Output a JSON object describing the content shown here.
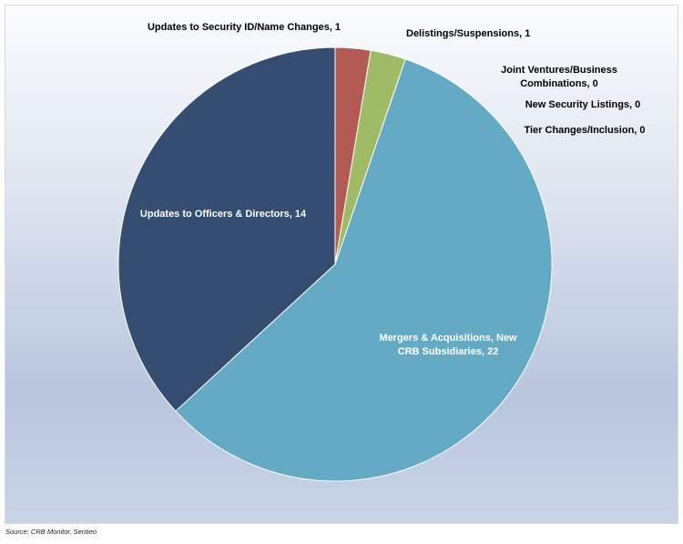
{
  "chart_data": {
    "type": "pie",
    "title": "",
    "slices": [
      {
        "label": "Updates to Security ID/Name Changes",
        "value": 1,
        "color": "#b35a53"
      },
      {
        "label": "Delistings/Suspensions",
        "value": 1,
        "color": "#9fbb66"
      },
      {
        "label": "Joint Ventures/Business Combinations",
        "value": 0,
        "color": "#7d62a0"
      },
      {
        "label": "New Security Listings",
        "value": 0,
        "color": "#4bacc6"
      },
      {
        "label": "Tier Changes/Inclusion",
        "value": 0,
        "color": "#f79646"
      },
      {
        "label": "Mergers & Acquisitions, New CRB Subsidiaries",
        "value": 22,
        "color": "#64aac4"
      },
      {
        "label": "Updates to Officers & Directors",
        "value": 14,
        "color": "#344d70"
      }
    ],
    "data_labels": [
      [
        "Updates to Security ID/Name Changes, 1"
      ],
      [
        "Delistings/Suspensions, 1"
      ],
      [
        "Joint Ventures/Business",
        "Combinations, 0"
      ],
      [
        "New Security Listings, 0"
      ],
      [
        "Tier Changes/Inclusion, 0"
      ],
      [
        "Mergers & Acquisitions, New",
        "CRB Subsidiaries, 22"
      ],
      [
        "Updates to Officers & Directors, 14"
      ]
    ],
    "start_angle": "12 o'clock",
    "direction": "clockwise",
    "legend": "none"
  },
  "source": "Source: CRB Monitor, Sentieo"
}
